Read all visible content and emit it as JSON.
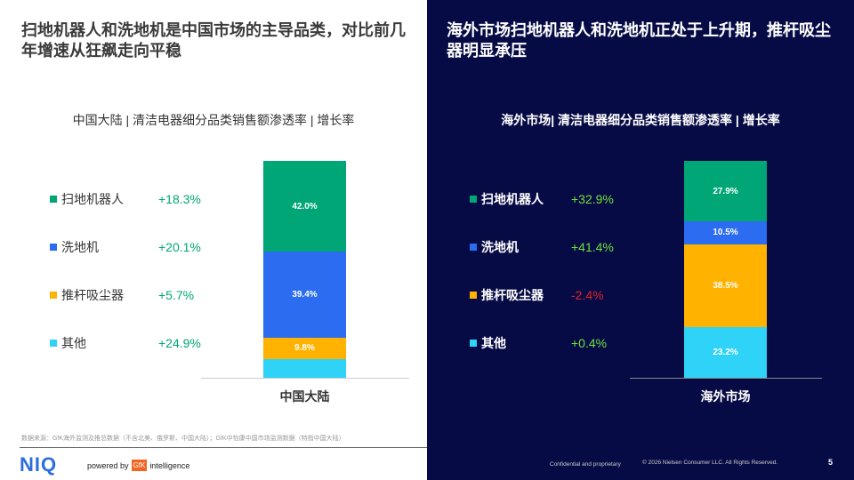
{
  "left": {
    "title": "扫地机器人和洗地机是中国市场的主导品类，对比前几年增速从狂飙走向平稳",
    "subtitle": "中国大陆 | 清洁电器细分品类销售额渗透率 | 增长率"
  },
  "right": {
    "title": "海外市场扫地机器人和洗地机正处于上升期，推杆吸尘器明显承压",
    "subtitle": "海外市场| 清洁电器细分品类销售额渗透率 | 增长率"
  },
  "colors": {
    "robot": "#00a676",
    "scrubber": "#2b6cf0",
    "stick": "#ffb300",
    "other": "#2fd3f7",
    "positive_left": "#00a676",
    "positive_right": "#6fe03a",
    "negative": "#e0202a"
  },
  "chart_data": [
    {
      "type": "bar",
      "stacked": true,
      "categories": [
        "中国大陆"
      ],
      "series": [
        {
          "name": "扫地机器人",
          "values": [
            42.0
          ],
          "label": "42.0%",
          "growth": "+18.3%"
        },
        {
          "name": "洗地机",
          "values": [
            39.4
          ],
          "label": "39.4%",
          "growth": "+20.1%"
        },
        {
          "name": "推杆吸尘器",
          "values": [
            9.8
          ],
          "label": "9.8%",
          "growth": "+5.7%"
        },
        {
          "name": "其他",
          "values": [
            8.8
          ],
          "label": "",
          "growth": "+24.9%"
        }
      ],
      "ylim": [
        0,
        100
      ],
      "grid": false,
      "legend": "left"
    },
    {
      "type": "bar",
      "stacked": true,
      "categories": [
        "海外市场"
      ],
      "series": [
        {
          "name": "扫地机器人",
          "values": [
            27.9
          ],
          "label": "27.9%",
          "growth": "+32.9%"
        },
        {
          "name": "洗地机",
          "values": [
            10.5
          ],
          "label": "10.5%",
          "growth": "+41.4%"
        },
        {
          "name": "推杆吸尘器",
          "values": [
            38.5
          ],
          "label": "38.5%",
          "growth": "-2.4%"
        },
        {
          "name": "其他",
          "values": [
            23.2
          ],
          "label": "23.2%",
          "growth": "+0.4%"
        }
      ],
      "ylim": [
        0,
        100
      ],
      "grid": false,
      "legend": "left"
    }
  ],
  "footer": {
    "source": "数据来源：GfK海外监测及推总数据（不含北美、俄罗斯、中国大陆）；GfK中怡康中国市场监测数据（特指中国大陆）",
    "logo": "NIQ",
    "powered_by": "powered by",
    "gfk": "GfK",
    "intelligence": "intelligence",
    "confidential": "Confidential and proprietary",
    "copyright": "© 2026 Nielsen Consumer LLC. All Rights Reserved.",
    "page": "5"
  }
}
